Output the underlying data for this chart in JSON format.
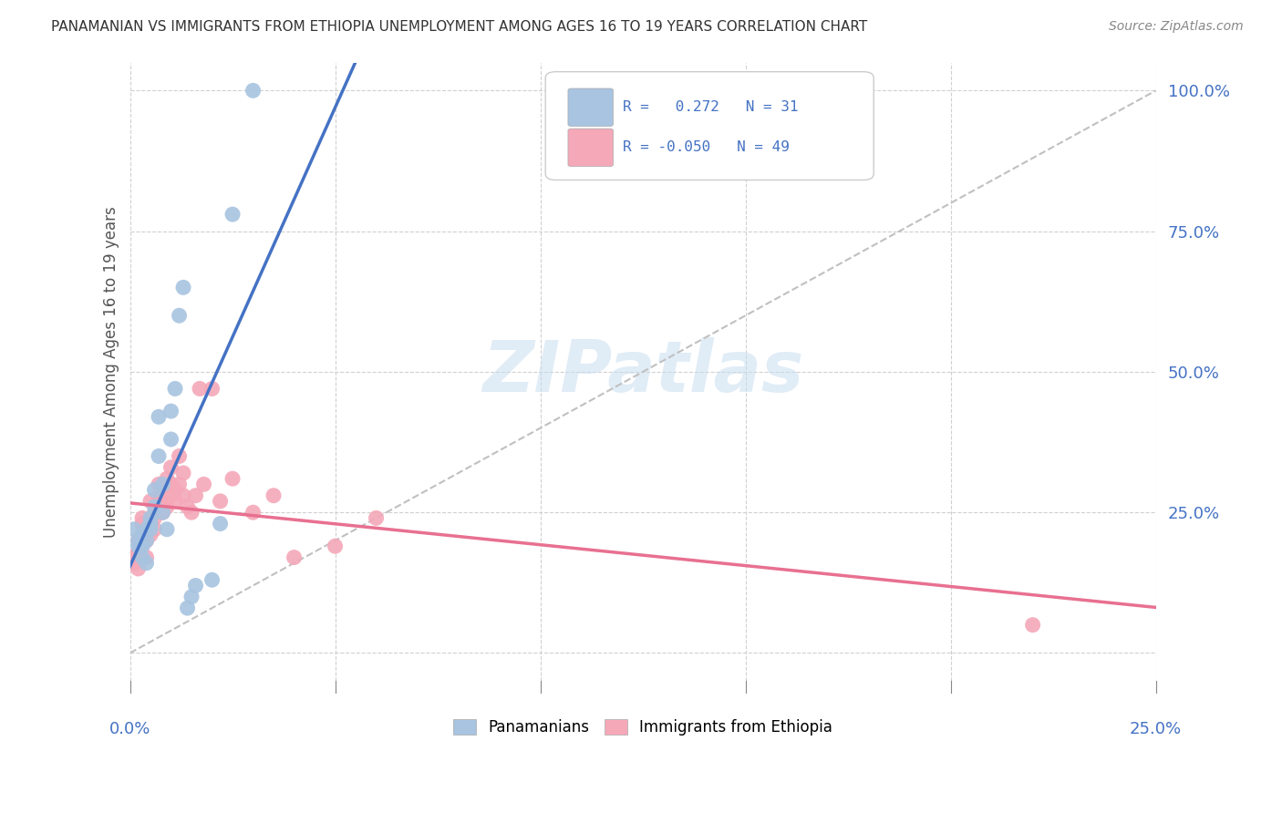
{
  "title": "PANAMANIAN VS IMMIGRANTS FROM ETHIOPIA UNEMPLOYMENT AMONG AGES 16 TO 19 YEARS CORRELATION CHART",
  "source": "Source: ZipAtlas.com",
  "ylabel": "Unemployment Among Ages 16 to 19 years",
  "xlim": [
    0.0,
    0.25
  ],
  "ylim": [
    -0.05,
    1.05
  ],
  "xticks": [
    0.0,
    0.05,
    0.1,
    0.15,
    0.2,
    0.25
  ],
  "yticks": [
    0.0,
    0.25,
    0.5,
    0.75,
    1.0
  ],
  "ytick_labels": [
    "",
    "25.0%",
    "50.0%",
    "75.0%",
    "100.0%"
  ],
  "panamanian_color": "#a8c4e0",
  "ethiopia_color": "#f4a8b8",
  "panamanian_line_color": "#4472c4",
  "ethiopia_line_color": "#e87090",
  "diagonal_color": "#c0c0c0",
  "background_color": "#ffffff",
  "watermark": "ZIPatlas",
  "pan_R": 0.272,
  "pan_N": 31,
  "eth_R": -0.05,
  "eth_N": 49,
  "panamanian_x": [
    0.001,
    0.002,
    0.002,
    0.003,
    0.003,
    0.003,
    0.004,
    0.004,
    0.004,
    0.005,
    0.005,
    0.005,
    0.006,
    0.006,
    0.007,
    0.007,
    0.008,
    0.008,
    0.009,
    0.01,
    0.01,
    0.011,
    0.012,
    0.013,
    0.014,
    0.015,
    0.016,
    0.02,
    0.022,
    0.025,
    0.03
  ],
  "panamanian_y": [
    0.22,
    0.2,
    0.19,
    0.21,
    0.19,
    0.17,
    0.22,
    0.2,
    0.16,
    0.24,
    0.22,
    0.23,
    0.26,
    0.29,
    0.42,
    0.35,
    0.3,
    0.25,
    0.22,
    0.38,
    0.43,
    0.47,
    0.6,
    0.65,
    0.08,
    0.1,
    0.12,
    0.13,
    0.23,
    0.78,
    1.0
  ],
  "ethiopia_x": [
    0.001,
    0.001,
    0.002,
    0.002,
    0.002,
    0.003,
    0.003,
    0.003,
    0.003,
    0.004,
    0.004,
    0.004,
    0.005,
    0.005,
    0.005,
    0.006,
    0.006,
    0.006,
    0.007,
    0.007,
    0.007,
    0.008,
    0.008,
    0.008,
    0.009,
    0.009,
    0.01,
    0.01,
    0.01,
    0.011,
    0.011,
    0.012,
    0.012,
    0.013,
    0.013,
    0.014,
    0.015,
    0.016,
    0.017,
    0.018,
    0.02,
    0.022,
    0.025,
    0.03,
    0.035,
    0.04,
    0.05,
    0.06,
    0.22
  ],
  "ethiopia_y": [
    0.17,
    0.16,
    0.18,
    0.15,
    0.2,
    0.19,
    0.21,
    0.23,
    0.24,
    0.22,
    0.2,
    0.17,
    0.23,
    0.21,
    0.27,
    0.22,
    0.25,
    0.24,
    0.28,
    0.26,
    0.3,
    0.27,
    0.29,
    0.25,
    0.31,
    0.26,
    0.33,
    0.28,
    0.3,
    0.29,
    0.27,
    0.35,
    0.3,
    0.32,
    0.28,
    0.26,
    0.25,
    0.28,
    0.47,
    0.3,
    0.47,
    0.27,
    0.31,
    0.25,
    0.28,
    0.17,
    0.19,
    0.24,
    0.05
  ]
}
